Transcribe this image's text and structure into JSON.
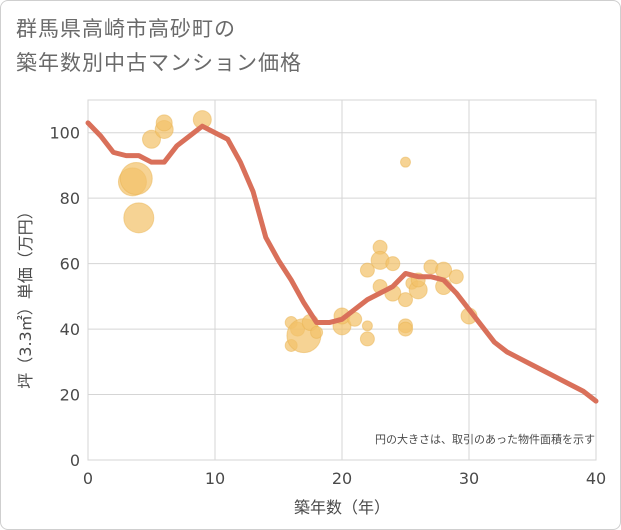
{
  "title_line1": "群馬県高崎市高砂町の",
  "title_line2": "築年数別中古マンション価格",
  "chart_data": {
    "type": "scatter",
    "title": "群馬県高崎市高砂町の築年数別中古マンション価格",
    "xlabel": "築年数（年）",
    "ylabel": "坪（3.3㎡）単価（万円）",
    "xlim": [
      0,
      40
    ],
    "ylim": [
      0,
      110
    ],
    "xticks": [
      0,
      10,
      20,
      30,
      40
    ],
    "yticks": [
      0,
      20,
      40,
      60,
      80,
      100
    ],
    "grid": true,
    "note": "円の大きさは、取引のあった物件面積を示す",
    "bubble_color": "#f2c26b",
    "line_color": "#d9705a",
    "points": [
      {
        "x": 3.5,
        "y": 85,
        "size": 14
      },
      {
        "x": 3.8,
        "y": 86,
        "size": 16
      },
      {
        "x": 4,
        "y": 74,
        "size": 15
      },
      {
        "x": 5,
        "y": 98,
        "size": 9
      },
      {
        "x": 6,
        "y": 101,
        "size": 9
      },
      {
        "x": 6,
        "y": 103,
        "size": 8
      },
      {
        "x": 9,
        "y": 104,
        "size": 9
      },
      {
        "x": 16,
        "y": 42,
        "size": 6
      },
      {
        "x": 16,
        "y": 35,
        "size": 6
      },
      {
        "x": 16.5,
        "y": 40,
        "size": 7
      },
      {
        "x": 17,
        "y": 38,
        "size": 17
      },
      {
        "x": 17.5,
        "y": 42,
        "size": 8
      },
      {
        "x": 18,
        "y": 39,
        "size": 6
      },
      {
        "x": 20,
        "y": 41,
        "size": 9
      },
      {
        "x": 20,
        "y": 44,
        "size": 8
      },
      {
        "x": 21,
        "y": 43,
        "size": 7
      },
      {
        "x": 22,
        "y": 58,
        "size": 7
      },
      {
        "x": 22,
        "y": 37,
        "size": 7
      },
      {
        "x": 22,
        "y": 41,
        "size": 5
      },
      {
        "x": 23,
        "y": 65,
        "size": 7
      },
      {
        "x": 23,
        "y": 61,
        "size": 9
      },
      {
        "x": 23,
        "y": 53,
        "size": 7
      },
      {
        "x": 24,
        "y": 60,
        "size": 7
      },
      {
        "x": 24,
        "y": 51,
        "size": 8
      },
      {
        "x": 25,
        "y": 91,
        "size": 5
      },
      {
        "x": 25,
        "y": 49,
        "size": 7
      },
      {
        "x": 25,
        "y": 41,
        "size": 7
      },
      {
        "x": 25,
        "y": 40,
        "size": 7
      },
      {
        "x": 25.5,
        "y": 54,
        "size": 6
      },
      {
        "x": 26,
        "y": 52,
        "size": 9
      },
      {
        "x": 26,
        "y": 55,
        "size": 7
      },
      {
        "x": 27,
        "y": 59,
        "size": 7
      },
      {
        "x": 28,
        "y": 58,
        "size": 8
      },
      {
        "x": 28,
        "y": 53,
        "size": 8
      },
      {
        "x": 29,
        "y": 56,
        "size": 7
      },
      {
        "x": 30,
        "y": 44,
        "size": 8
      }
    ],
    "line": {
      "x": [
        0,
        1,
        2,
        3,
        4,
        5,
        6,
        7,
        8,
        9,
        10,
        11,
        12,
        13,
        14,
        15,
        16,
        17,
        18,
        19,
        20,
        21,
        22,
        23,
        24,
        25,
        26,
        27,
        28,
        29,
        30,
        31,
        32,
        33,
        34,
        35,
        36,
        37,
        38,
        39,
        40
      ],
      "y": [
        103,
        99,
        94,
        93,
        93,
        91,
        91,
        96,
        99,
        102,
        100,
        98,
        91,
        82,
        68,
        61,
        55,
        48,
        42,
        42,
        43,
        46,
        49,
        51,
        53,
        57,
        56,
        56,
        55,
        51,
        46,
        41,
        36,
        33,
        31,
        29,
        27,
        25,
        23,
        21,
        18
      ]
    }
  }
}
